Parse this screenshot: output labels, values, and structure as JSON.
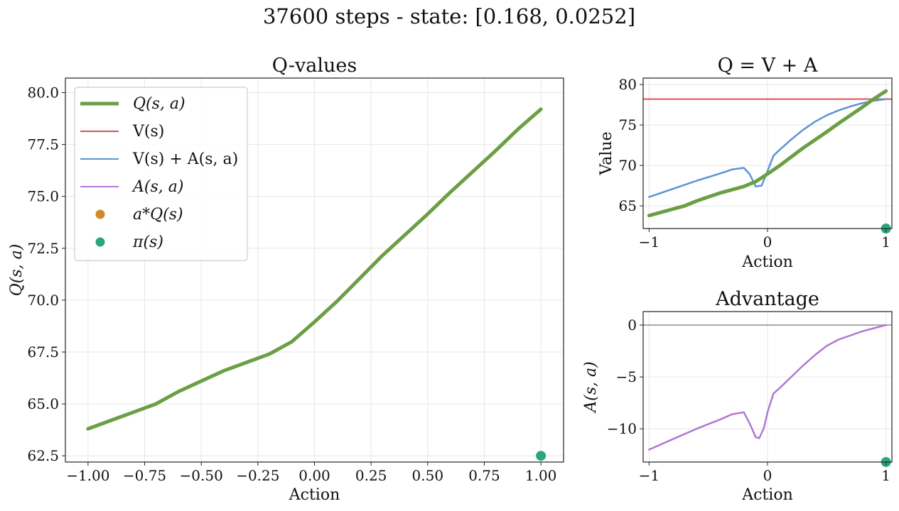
{
  "suptitle": "37600 steps - state: [0.168, 0.0252]",
  "colors": {
    "q": "#6a9f44",
    "v": "#d9534f",
    "vpa": "#5b93d9",
    "adv": "#b277d6",
    "a_star": "#d08a2e",
    "pi": "#2aa77a",
    "zero_line": "#a8a8a8",
    "grid": "#e6e6e6"
  },
  "chart_data": [
    {
      "id": "q-values",
      "type": "line",
      "title": "Q-values",
      "xlabel": "Action",
      "ylabel": "Q(s, a)",
      "xlim": [
        -1.1,
        1.1
      ],
      "ylim": [
        62.2,
        80.7
      ],
      "xticks": [
        -1.0,
        -0.75,
        -0.5,
        -0.25,
        0.0,
        0.25,
        0.5,
        0.75,
        1.0
      ],
      "xticklabels": [
        "−1.00",
        "−0.75",
        "−0.50",
        "−0.25",
        "0.00",
        "0.25",
        "0.50",
        "0.75",
        "1.00"
      ],
      "yticks": [
        62.5,
        65.0,
        67.5,
        70.0,
        72.5,
        75.0,
        77.5,
        80.0
      ],
      "yticklabels": [
        "62.5",
        "65.0",
        "67.5",
        "70.0",
        "72.5",
        "75.0",
        "77.5",
        "80.0"
      ],
      "grid": true,
      "legend": {
        "placement": "upper-left",
        "entries": [
          {
            "key": "q",
            "label": "Q(s, a)",
            "kind": "line-thick",
            "italic": true
          },
          {
            "key": "v",
            "label": "V(s)",
            "kind": "line",
            "italic": false
          },
          {
            "key": "vpa",
            "label": "V(s) + A(s, a)",
            "kind": "line",
            "italic": false
          },
          {
            "key": "adv",
            "label": "A(s, a)",
            "kind": "line",
            "italic": true
          },
          {
            "key": "a_star",
            "label": "a*Q(s)",
            "kind": "dot",
            "italic": true
          },
          {
            "key": "pi",
            "label": "π(s)",
            "kind": "dot",
            "italic": true
          }
        ]
      },
      "series": [
        {
          "key": "q",
          "width": 5,
          "x": [
            -1.0,
            -0.9,
            -0.8,
            -0.7,
            -0.6,
            -0.5,
            -0.4,
            -0.3,
            -0.2,
            -0.1,
            0.0,
            0.1,
            0.2,
            0.3,
            0.4,
            0.5,
            0.6,
            0.7,
            0.8,
            0.9,
            1.0
          ],
          "y": [
            63.8,
            64.2,
            64.6,
            65.0,
            65.6,
            66.1,
            66.6,
            67.0,
            67.4,
            68.0,
            68.95,
            69.95,
            71.05,
            72.15,
            73.15,
            74.15,
            75.2,
            76.2,
            77.2,
            78.25,
            79.2
          ]
        }
      ],
      "points": [
        {
          "key": "pi",
          "x": 1.0,
          "y": 62.5
        }
      ]
    },
    {
      "id": "q-v-a",
      "type": "line",
      "title": "Q = V + A",
      "xlabel": "Action",
      "ylabel": "Value",
      "xlim": [
        -1.05,
        1.05
      ],
      "ylim": [
        62.2,
        80.8
      ],
      "xticks": [
        -1,
        0,
        1
      ],
      "xticklabels": [
        "−1",
        "0",
        "1"
      ],
      "yticks": [
        65,
        70,
        75,
        80
      ],
      "yticklabels": [
        "65",
        "70",
        "75",
        "80"
      ],
      "grid": true,
      "hlines": [
        {
          "key": "v",
          "y": 78.2,
          "width": 2
        }
      ],
      "series": [
        {
          "key": "vpa",
          "width": 2.5,
          "x": [
            -1.0,
            -0.8,
            -0.6,
            -0.4,
            -0.3,
            -0.2,
            -0.15,
            -0.1,
            -0.05,
            0.0,
            0.05,
            0.1,
            0.2,
            0.3,
            0.4,
            0.5,
            0.6,
            0.7,
            0.8,
            0.9,
            1.0
          ],
          "y": [
            66.1,
            67.1,
            68.1,
            69.0,
            69.5,
            69.7,
            68.9,
            67.4,
            67.5,
            69.3,
            71.2,
            71.9,
            73.2,
            74.4,
            75.4,
            76.2,
            76.8,
            77.3,
            77.7,
            78.0,
            78.2
          ]
        },
        {
          "key": "q",
          "width": 5,
          "x": [
            -1.0,
            -0.9,
            -0.8,
            -0.7,
            -0.6,
            -0.5,
            -0.4,
            -0.3,
            -0.2,
            -0.1,
            0.0,
            0.1,
            0.2,
            0.3,
            0.4,
            0.5,
            0.6,
            0.7,
            0.8,
            0.9,
            1.0
          ],
          "y": [
            63.8,
            64.2,
            64.6,
            65.0,
            65.6,
            66.1,
            66.6,
            67.0,
            67.4,
            68.0,
            68.95,
            69.95,
            71.05,
            72.15,
            73.15,
            74.15,
            75.2,
            76.2,
            77.2,
            78.25,
            79.2
          ]
        }
      ],
      "points": [
        {
          "key": "pi",
          "x": 1.0,
          "y": 62.2
        }
      ]
    },
    {
      "id": "advantage",
      "type": "line",
      "title": "Advantage",
      "xlabel": "Action",
      "ylabel": "A(s, a)",
      "xlim": [
        -1.05,
        1.05
      ],
      "ylim": [
        -13.2,
        1.3
      ],
      "xticks": [
        -1,
        0,
        1
      ],
      "xticklabels": [
        "−1",
        "0",
        "1"
      ],
      "yticks": [
        -10,
        -5,
        0
      ],
      "yticklabels": [
        "−10",
        "−5",
        "0"
      ],
      "grid": true,
      "hlines": [
        {
          "key": "zero_line",
          "y": 0,
          "width": 2
        }
      ],
      "series": [
        {
          "key": "adv",
          "width": 2.5,
          "x": [
            -1.0,
            -0.8,
            -0.6,
            -0.4,
            -0.3,
            -0.2,
            -0.15,
            -0.1,
            -0.07,
            -0.03,
            0.0,
            0.05,
            0.1,
            0.2,
            0.3,
            0.4,
            0.5,
            0.6,
            0.7,
            0.8,
            0.9,
            1.0
          ],
          "y": [
            -12.0,
            -11.0,
            -10.0,
            -9.1,
            -8.6,
            -8.4,
            -9.5,
            -10.8,
            -10.9,
            -9.9,
            -8.4,
            -6.6,
            -6.1,
            -5.0,
            -3.9,
            -2.9,
            -2.0,
            -1.4,
            -1.0,
            -0.6,
            -0.3,
            0.0
          ]
        }
      ],
      "points": [
        {
          "key": "pi",
          "x": 1.0,
          "y": -13.2
        }
      ]
    }
  ]
}
